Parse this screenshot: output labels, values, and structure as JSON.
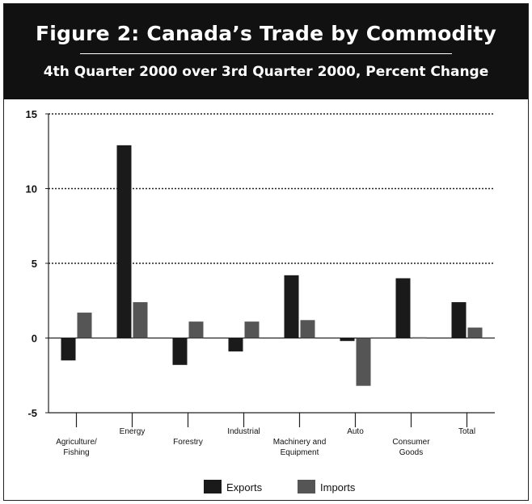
{
  "title": "Figure 2: Canada’s Trade by Commodity",
  "subtitle": "4th Quarter 2000 over 3rd Quarter 2000, Percent Change",
  "colors": {
    "exports": "#1a1a1a",
    "imports": "#555555",
    "header_bg": "#111111"
  },
  "chart_data": {
    "type": "bar",
    "categories": [
      "Agriculture/ Fishing",
      "Energy",
      "Forestry",
      "Industrial",
      "Machinery and Equipment",
      "Auto",
      "Consumer Goods",
      "Total"
    ],
    "category_lines": [
      [
        "Agriculture/",
        "Fishing"
      ],
      [
        "Energy"
      ],
      [
        "Forestry"
      ],
      [
        "Industrial"
      ],
      [
        "Machinery and",
        "Equipment"
      ],
      [
        "Auto"
      ],
      [
        "Consumer",
        "Goods"
      ],
      [
        "Total"
      ]
    ],
    "series": [
      {
        "name": "Exports",
        "values": [
          -1.5,
          12.9,
          -1.8,
          -0.9,
          4.2,
          -0.2,
          4.0,
          2.4
        ]
      },
      {
        "name": "Imports",
        "values": [
          1.7,
          2.4,
          1.1,
          1.1,
          1.2,
          -3.2,
          0.05,
          0.7
        ]
      }
    ],
    "ylim": [
      -5,
      15
    ],
    "yticks": [
      "-5",
      "0",
      "5",
      "10",
      "15"
    ],
    "grid": true,
    "legend_position": "bottom"
  }
}
